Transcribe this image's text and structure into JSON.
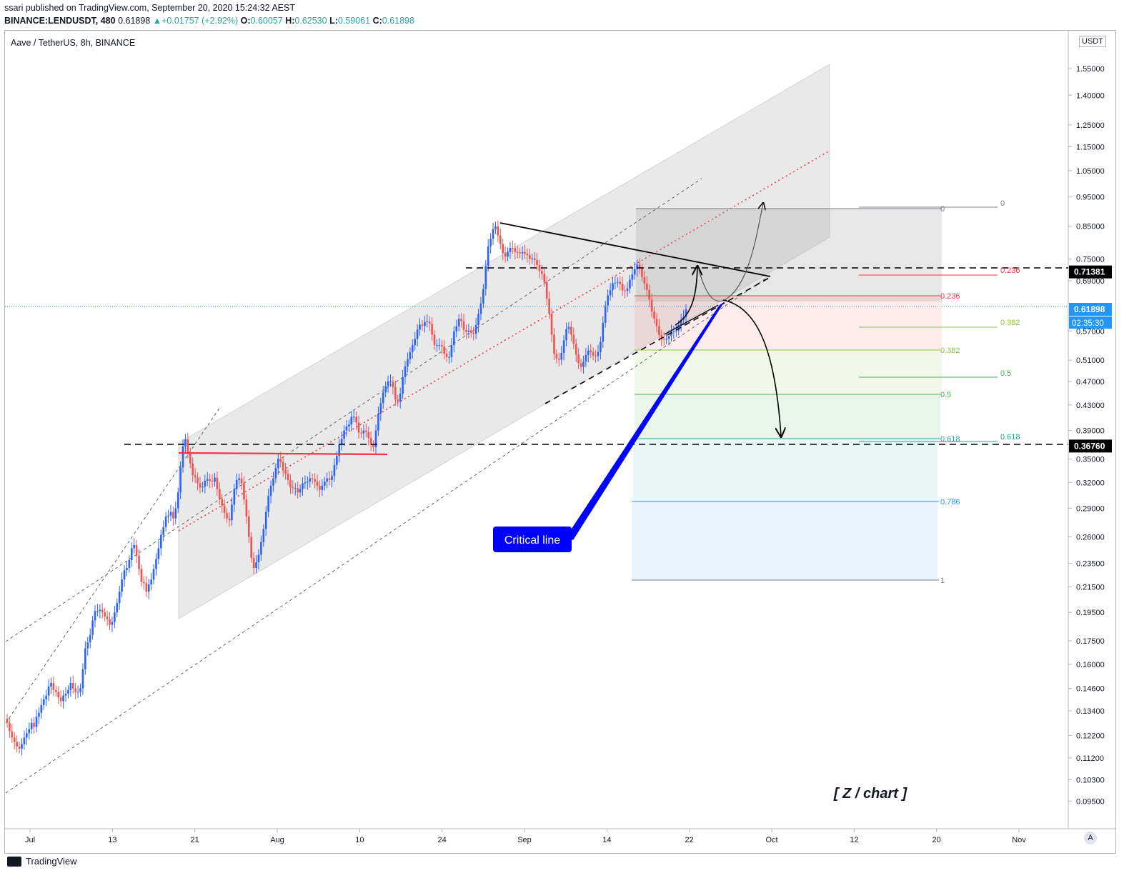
{
  "header": {
    "publish_line": "ssari published on TradingView.com, September 20, 2020 15:24:32 AEST",
    "symbol": "BINANCE:LENDUSDT, 480",
    "last": "0.61898",
    "change": "+0.01757 (+2.92%)",
    "o_label": "O:",
    "o_value": "0.60057",
    "h_label": "H:",
    "h_value": "0.62530",
    "l_label": "L:",
    "l_value": "0.59061",
    "c_label": "C:",
    "c_value": "0.61898"
  },
  "legend": "Aave / TetherUS, 8h, BINANCE",
  "currency": "USDT",
  "autoscale": "A",
  "watermark": "[ Z / chart ]",
  "callout": "Critical line",
  "footer_brand": "TradingView",
  "colors": {
    "up": "#26a69a",
    "down": "#ef5350",
    "blue_candle": "#2962ff",
    "accent_blue": "#2196f3",
    "callout_bg": "#0000ff"
  },
  "chart_data": {
    "type": "candlestick",
    "y_scale": "log",
    "ylim": [
      0.0855,
      1.79
    ],
    "y_ticks": [
      "1.55000",
      "1.40000",
      "1.25000",
      "1.15000",
      "1.05000",
      "0.95000",
      "0.85000",
      "0.75000",
      "0.69000",
      "0.57000",
      "0.51000",
      "0.47000",
      "0.43000",
      "0.39000",
      "0.35000",
      "0.32000",
      "0.29000",
      "0.26000",
      "0.23500",
      "0.21500",
      "0.19500",
      "0.17500",
      "0.16000",
      "0.14600",
      "0.13400",
      "0.12200",
      "0.11200",
      "0.10300",
      "0.09500"
    ],
    "x_ticks": [
      "Jul",
      "13",
      "21",
      "Aug",
      "10",
      "24",
      "Sep",
      "14",
      "22",
      "Oct",
      "12",
      "20",
      "Nov"
    ],
    "price_labels": [
      {
        "value": 0.71381,
        "text": "0.71381",
        "style": "black"
      },
      {
        "value": 0.61898,
        "text": "0.61898",
        "style": "blue"
      },
      {
        "value": 0.3676,
        "text": "0.36760",
        "style": "black"
      }
    ],
    "countdown": "02:35:30",
    "horizontal_levels": [
      0.71381,
      0.3676
    ],
    "fib_left": [
      {
        "level": "0",
        "price": 0.905
      },
      {
        "level": "0.236",
        "price": 0.65
      },
      {
        "level": "0.382",
        "price": 0.53
      },
      {
        "level": "0.5",
        "price": 0.445
      },
      {
        "level": "0.618",
        "price": 0.374
      },
      {
        "level": "0.786",
        "price": 0.293
      },
      {
        "level": "1",
        "price": 0.221
      }
    ],
    "fib_right": [
      {
        "level": "0",
        "price": 0.905
      },
      {
        "level": "0.236",
        "price": 0.703
      },
      {
        "level": "0.382",
        "price": 0.578
      },
      {
        "level": "0.5",
        "price": 0.476
      },
      {
        "level": "0.618",
        "price": 0.372
      }
    ],
    "candles_open": [
      0.13,
      0.128,
      0.124,
      0.121,
      0.119,
      0.117,
      0.116,
      0.118,
      0.121,
      0.123,
      0.125,
      0.128,
      0.126,
      0.131,
      0.133,
      0.137,
      0.14,
      0.142,
      0.147,
      0.149,
      0.145,
      0.144,
      0.141,
      0.139,
      0.142,
      0.143,
      0.145,
      0.149,
      0.146,
      0.144,
      0.144,
      0.146,
      0.157,
      0.17,
      0.174,
      0.179,
      0.189,
      0.196,
      0.196,
      0.197,
      0.195,
      0.192,
      0.19,
      0.186,
      0.188,
      0.195,
      0.202,
      0.211,
      0.221,
      0.229,
      0.231,
      0.238,
      0.249,
      0.252,
      0.242,
      0.23,
      0.219,
      0.218,
      0.211,
      0.217,
      0.221,
      0.23,
      0.239,
      0.249,
      0.262,
      0.27,
      0.281,
      0.282,
      0.286,
      0.279,
      0.29,
      0.308,
      0.339,
      0.367,
      0.377,
      0.359,
      0.344,
      0.329,
      0.326,
      0.319,
      0.314,
      0.315,
      0.322,
      0.324,
      0.322,
      0.321,
      0.326,
      0.312,
      0.3,
      0.293,
      0.285,
      0.279,
      0.277,
      0.294,
      0.312,
      0.323,
      0.325,
      0.319,
      0.3,
      0.281,
      0.26,
      0.24,
      0.231,
      0.236,
      0.243,
      0.255,
      0.268,
      0.286,
      0.304,
      0.316,
      0.325,
      0.338,
      0.35,
      0.346,
      0.336,
      0.331,
      0.323,
      0.314,
      0.313,
      0.313,
      0.308,
      0.312,
      0.319,
      0.32,
      0.321,
      0.325,
      0.324,
      0.321,
      0.316,
      0.311,
      0.316,
      0.321,
      0.325,
      0.323,
      0.328,
      0.342,
      0.354,
      0.369,
      0.378,
      0.39,
      0.396,
      0.399,
      0.411,
      0.411,
      0.402,
      0.387,
      0.386,
      0.39,
      0.388,
      0.379,
      0.369,
      0.366,
      0.39,
      0.416,
      0.433,
      0.451,
      0.462,
      0.47,
      0.47,
      0.46,
      0.439,
      0.435,
      0.449,
      0.478,
      0.498,
      0.512,
      0.526,
      0.54,
      0.553,
      0.573,
      0.584,
      0.581,
      0.59,
      0.591,
      0.586,
      0.562,
      0.54,
      0.54,
      0.54,
      0.537,
      0.523,
      0.516,
      0.516,
      0.54,
      0.569,
      0.58,
      0.597,
      0.592,
      0.572,
      0.568,
      0.571,
      0.566,
      0.564,
      0.583,
      0.608,
      0.633,
      0.669,
      0.73,
      0.787,
      0.81,
      0.84,
      0.849,
      0.82,
      0.794,
      0.767,
      0.757,
      0.77,
      0.782,
      0.781,
      0.77,
      0.769,
      0.766,
      0.77,
      0.765,
      0.761,
      0.75,
      0.752,
      0.747,
      0.733,
      0.716,
      0.709,
      0.687,
      0.645,
      0.609,
      0.562,
      0.522,
      0.513,
      0.511,
      0.524,
      0.55,
      0.574,
      0.579,
      0.562,
      0.543,
      0.521,
      0.504,
      0.497,
      0.507,
      0.52,
      0.529,
      0.526,
      0.519,
      0.518,
      0.526,
      0.547,
      0.588,
      0.628,
      0.653,
      0.666,
      0.684,
      0.685,
      0.687,
      0.682,
      0.665,
      0.664,
      0.67,
      0.693,
      0.707,
      0.721,
      0.734,
      0.724,
      0.7,
      0.683,
      0.667,
      0.642,
      0.614,
      0.597,
      0.581,
      0.561,
      0.553,
      0.552,
      0.553,
      0.559,
      0.568,
      0.57,
      0.571,
      0.583,
      0.595,
      0.601
    ],
    "candles_close": [
      0.128,
      0.124,
      0.121,
      0.119,
      0.117,
      0.116,
      0.118,
      0.121,
      0.123,
      0.125,
      0.128,
      0.126,
      0.131,
      0.133,
      0.137,
      0.14,
      0.142,
      0.147,
      0.149,
      0.145,
      0.144,
      0.141,
      0.139,
      0.142,
      0.143,
      0.145,
      0.149,
      0.146,
      0.144,
      0.144,
      0.146,
      0.157,
      0.17,
      0.174,
      0.179,
      0.189,
      0.196,
      0.196,
      0.197,
      0.195,
      0.192,
      0.19,
      0.186,
      0.188,
      0.195,
      0.202,
      0.211,
      0.221,
      0.229,
      0.231,
      0.238,
      0.249,
      0.252,
      0.242,
      0.23,
      0.219,
      0.218,
      0.211,
      0.217,
      0.221,
      0.23,
      0.239,
      0.249,
      0.262,
      0.27,
      0.281,
      0.282,
      0.286,
      0.279,
      0.29,
      0.308,
      0.339,
      0.367,
      0.377,
      0.359,
      0.344,
      0.329,
      0.326,
      0.319,
      0.314,
      0.315,
      0.322,
      0.324,
      0.322,
      0.321,
      0.326,
      0.312,
      0.3,
      0.293,
      0.285,
      0.279,
      0.277,
      0.294,
      0.312,
      0.323,
      0.325,
      0.319,
      0.3,
      0.281,
      0.26,
      0.24,
      0.231,
      0.236,
      0.243,
      0.255,
      0.268,
      0.286,
      0.304,
      0.316,
      0.325,
      0.338,
      0.35,
      0.346,
      0.336,
      0.331,
      0.323,
      0.314,
      0.313,
      0.313,
      0.308,
      0.312,
      0.319,
      0.32,
      0.321,
      0.325,
      0.324,
      0.321,
      0.316,
      0.311,
      0.316,
      0.321,
      0.325,
      0.323,
      0.328,
      0.342,
      0.354,
      0.369,
      0.378,
      0.39,
      0.396,
      0.399,
      0.411,
      0.411,
      0.402,
      0.387,
      0.386,
      0.39,
      0.388,
      0.379,
      0.369,
      0.366,
      0.39,
      0.416,
      0.433,
      0.451,
      0.462,
      0.47,
      0.47,
      0.46,
      0.439,
      0.435,
      0.449,
      0.478,
      0.498,
      0.512,
      0.526,
      0.54,
      0.553,
      0.573,
      0.584,
      0.581,
      0.59,
      0.591,
      0.586,
      0.562,
      0.54,
      0.54,
      0.54,
      0.537,
      0.523,
      0.516,
      0.516,
      0.54,
      0.569,
      0.58,
      0.597,
      0.592,
      0.572,
      0.568,
      0.571,
      0.566,
      0.564,
      0.583,
      0.608,
      0.633,
      0.669,
      0.73,
      0.787,
      0.81,
      0.84,
      0.849,
      0.82,
      0.794,
      0.767,
      0.757,
      0.77,
      0.782,
      0.781,
      0.77,
      0.769,
      0.766,
      0.77,
      0.765,
      0.761,
      0.75,
      0.752,
      0.747,
      0.733,
      0.716,
      0.709,
      0.687,
      0.645,
      0.609,
      0.562,
      0.522,
      0.513,
      0.511,
      0.524,
      0.55,
      0.574,
      0.579,
      0.562,
      0.543,
      0.521,
      0.504,
      0.497,
      0.507,
      0.52,
      0.529,
      0.526,
      0.519,
      0.518,
      0.526,
      0.547,
      0.588,
      0.628,
      0.653,
      0.666,
      0.684,
      0.685,
      0.687,
      0.682,
      0.665,
      0.664,
      0.67,
      0.693,
      0.707,
      0.721,
      0.734,
      0.724,
      0.7,
      0.683,
      0.667,
      0.642,
      0.614,
      0.597,
      0.581,
      0.561,
      0.553,
      0.552,
      0.553,
      0.559,
      0.568,
      0.57,
      0.571,
      0.583,
      0.595,
      0.601,
      0.619
    ]
  }
}
